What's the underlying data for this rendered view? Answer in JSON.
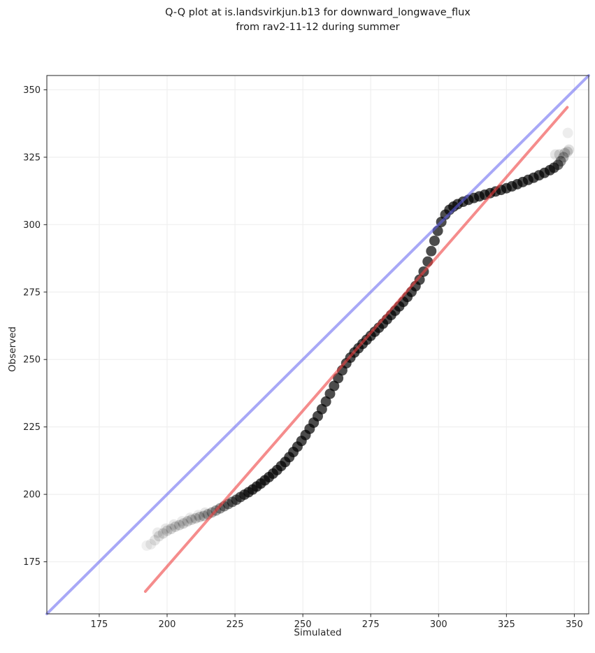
{
  "title": {
    "line1": "Q-Q plot at is.landsvirkjun.b13 for downward_longwave_flux",
    "line2": "from rav2-11-12 during summer"
  },
  "chart_data": {
    "type": "scatter",
    "title": "Q-Q plot at is.landsvirkjun.b13 for downward_longwave_flux from rav2-11-12 during summer",
    "xlabel": "Simulated",
    "ylabel": "Observed",
    "xlim": [
      155.7,
      355.3
    ],
    "ylim": [
      155.7,
      355.3
    ],
    "xticks": [
      175,
      200,
      225,
      250,
      275,
      300,
      325,
      350
    ],
    "yticks": [
      175,
      200,
      225,
      250,
      275,
      300,
      325,
      350
    ],
    "grid": true,
    "grid_color": "#efefef",
    "spine_color": "#262626",
    "point_color": "#000000",
    "point_radius_px": 7.5,
    "identity_line": {
      "name": "identity-line",
      "color": "#6060f0",
      "opacity": 0.55,
      "width": 4,
      "from": [
        155.7,
        155.7
      ],
      "to": [
        355.3,
        355.3
      ]
    },
    "fit_line": {
      "name": "fit-line",
      "color": "#ee3f3f",
      "opacity": 0.6,
      "width": 4,
      "from": [
        192.0,
        164.0
      ],
      "to": [
        347.4,
        343.5
      ]
    },
    "points": [
      [
        192.5,
        181,
        0.06
      ],
      [
        194,
        181.5,
        0.08
      ],
      [
        195.5,
        183,
        0.1
      ],
      [
        196.5,
        185.8,
        0.08
      ],
      [
        197,
        184.5,
        0.12
      ],
      [
        198.5,
        185.5,
        0.14
      ],
      [
        199.5,
        187.3,
        0.09
      ],
      [
        200,
        186.5,
        0.15
      ],
      [
        201.5,
        187.2,
        0.15
      ],
      [
        202.5,
        188.8,
        0.09
      ],
      [
        203,
        188,
        0.16
      ],
      [
        204.5,
        188.6,
        0.16
      ],
      [
        205.5,
        190,
        0.08
      ],
      [
        206,
        189.2,
        0.17
      ],
      [
        207.5,
        190,
        0.17
      ],
      [
        208.5,
        191.3,
        0.08
      ],
      [
        209,
        190.6,
        0.18
      ],
      [
        210.5,
        191.1,
        0.18
      ],
      [
        211.5,
        192.3,
        0.08
      ],
      [
        212,
        191.6,
        0.2
      ],
      [
        213.5,
        192,
        0.22
      ],
      [
        214,
        193.2,
        0.1
      ],
      [
        215,
        192.6,
        0.26
      ],
      [
        216.5,
        193.3,
        0.3
      ],
      [
        218,
        194,
        0.34
      ],
      [
        219.5,
        194.8,
        0.38
      ],
      [
        221,
        195.6,
        0.42
      ],
      [
        222.5,
        196.4,
        0.46
      ],
      [
        224,
        197.2,
        0.5
      ],
      [
        225.5,
        198,
        0.55
      ],
      [
        227,
        199,
        0.6
      ],
      [
        228.5,
        199.9,
        0.65
      ],
      [
        230,
        200.8,
        0.68
      ],
      [
        231.5,
        201.8,
        0.7
      ],
      [
        233,
        202.9,
        0.7
      ],
      [
        234.5,
        204,
        0.7
      ],
      [
        236,
        205.2,
        0.7
      ],
      [
        237.5,
        206.4,
        0.7
      ],
      [
        239,
        207.7,
        0.7
      ],
      [
        240.5,
        209,
        0.7
      ],
      [
        242,
        210.5,
        0.7
      ],
      [
        243.5,
        212,
        0.7
      ],
      [
        245,
        213.8,
        0.7
      ],
      [
        246.5,
        215.7,
        0.7
      ],
      [
        248,
        217.7,
        0.7
      ],
      [
        249.5,
        219.8,
        0.7
      ],
      [
        251,
        222,
        0.7
      ],
      [
        252.5,
        224.3,
        0.7
      ],
      [
        254,
        226.6,
        0.7
      ],
      [
        255.5,
        229,
        0.7
      ],
      [
        257,
        231.6,
        0.7
      ],
      [
        258.5,
        234.4,
        0.7
      ],
      [
        260,
        237.3,
        0.7
      ],
      [
        261.5,
        240.2,
        0.7
      ],
      [
        263,
        243.1,
        0.7
      ],
      [
        264.5,
        246,
        0.7
      ],
      [
        266,
        248.6,
        0.7
      ],
      [
        267.5,
        250.7,
        0.7
      ],
      [
        269,
        252.6,
        0.7
      ],
      [
        270.5,
        254.2,
        0.7
      ],
      [
        272,
        255.8,
        0.7
      ],
      [
        273.5,
        257.3,
        0.7
      ],
      [
        275,
        258.8,
        0.7
      ],
      [
        276.5,
        260.3,
        0.7
      ],
      [
        278,
        261.8,
        0.7
      ],
      [
        279.5,
        263.3,
        0.7
      ],
      [
        281,
        264.9,
        0.7
      ],
      [
        282.5,
        266.5,
        0.7
      ],
      [
        284,
        268.1,
        0.7
      ],
      [
        285.5,
        269.7,
        0.7
      ],
      [
        287,
        271.4,
        0.7
      ],
      [
        288.5,
        273.2,
        0.7
      ],
      [
        290,
        275.1,
        0.7
      ],
      [
        291.5,
        277.2,
        0.7
      ],
      [
        293,
        279.6,
        0.7
      ],
      [
        294.5,
        282.6,
        0.7
      ],
      [
        296,
        286.3,
        0.7
      ],
      [
        297.3,
        290.2,
        0.7
      ],
      [
        298.5,
        294,
        0.7
      ],
      [
        299.7,
        297.7,
        0.7
      ],
      [
        301,
        301,
        0.7
      ],
      [
        302.5,
        303.7,
        0.7
      ],
      [
        304,
        305.5,
        0.7
      ],
      [
        305.5,
        306.7,
        0.7
      ],
      [
        307,
        307.6,
        0.7
      ],
      [
        309,
        308.5,
        0.7
      ],
      [
        311,
        309.2,
        0.7
      ],
      [
        313,
        309.9,
        0.7
      ],
      [
        315,
        310.5,
        0.7
      ],
      [
        317,
        311.1,
        0.7
      ],
      [
        319,
        311.7,
        0.7
      ],
      [
        321,
        312.3,
        0.7
      ],
      [
        323,
        312.9,
        0.7
      ],
      [
        325,
        313.5,
        0.7
      ],
      [
        327,
        314.2,
        0.7
      ],
      [
        329,
        315,
        0.7
      ],
      [
        331,
        315.8,
        0.7
      ],
      [
        333,
        316.6,
        0.7
      ],
      [
        335,
        317.4,
        0.7
      ],
      [
        337,
        318.3,
        0.7
      ],
      [
        339,
        319.2,
        0.7
      ],
      [
        341,
        320.2,
        0.7
      ],
      [
        342.5,
        321.1,
        0.65
      ],
      [
        344,
        322.2,
        0.55
      ],
      [
        345,
        323.5,
        0.4
      ],
      [
        346,
        325,
        0.28
      ],
      [
        343,
        326,
        0.1
      ],
      [
        344.5,
        326,
        0.15
      ],
      [
        346.5,
        326.5,
        0.18
      ],
      [
        347.5,
        327,
        0.16
      ],
      [
        348,
        327.8,
        0.12
      ],
      [
        347.6,
        334,
        0.07
      ]
    ]
  }
}
